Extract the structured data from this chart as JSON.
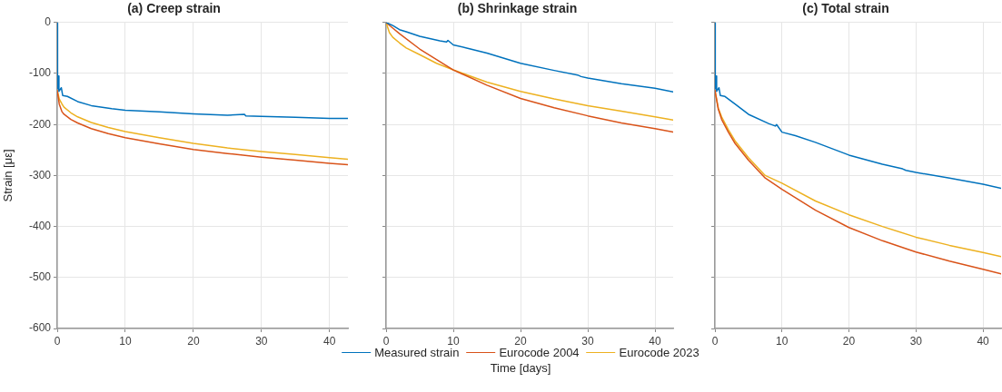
{
  "chart_data": [
    {
      "type": "line",
      "title": "(a) Creep strain",
      "ylabel": "Strain [με]",
      "xlim": [
        0,
        42.7
      ],
      "xticks": [
        0,
        10,
        20,
        30,
        40
      ],
      "ylim": [
        -600,
        0
      ],
      "yticks": [
        -600,
        -500,
        -400,
        -300,
        -200,
        -100,
        0
      ],
      "grid": true,
      "marker": "none",
      "series": [
        {
          "color": "#0072bd",
          "x": [
            0,
            0.05,
            0.15,
            0.25,
            0.6,
            0.8,
            1.5,
            3,
            5,
            8,
            10,
            15,
            20,
            25,
            27.5,
            27.7,
            30,
            35,
            40,
            42.7
          ],
          "values": [
            0,
            -130,
            -105,
            -135,
            -128,
            -143,
            -145,
            -155,
            -163,
            -169,
            -172,
            -175,
            -179,
            -182,
            -180,
            -183,
            -184,
            -186,
            -188,
            -188
          ]
        },
        {
          "color": "#d95319",
          "x": [
            0,
            0.3,
            0.7,
            1,
            2,
            3,
            5,
            7.5,
            10,
            15,
            20,
            25,
            30,
            35,
            40,
            42.7
          ],
          "values": [
            -133,
            -160,
            -175,
            -180,
            -190,
            -197,
            -208,
            -218,
            -226,
            -238,
            -249,
            -257,
            -264,
            -270,
            -276,
            -279
          ]
        },
        {
          "color": "#edb120",
          "x": [
            0,
            0.3,
            0.7,
            1,
            2,
            3,
            5,
            7.5,
            10,
            15,
            20,
            25,
            30,
            35,
            40,
            42.7
          ],
          "values": [
            -133,
            -150,
            -160,
            -166,
            -177,
            -185,
            -196,
            -206,
            -214,
            -226,
            -237,
            -246,
            -253,
            -259,
            -265,
            -268
          ]
        }
      ]
    },
    {
      "type": "line",
      "title": "(b) Shrinkage strain",
      "xlabel": "Time [days]",
      "xlim": [
        0,
        42.7
      ],
      "xticks": [
        0,
        10,
        20,
        30,
        40
      ],
      "ylim": [
        -600,
        0
      ],
      "yticks": [
        -600,
        -500,
        -400,
        -300,
        -200,
        -100,
        0
      ],
      "grid": true,
      "marker": "none",
      "legend": "bottom",
      "tick_labels": "x",
      "series": [
        {
          "name": "Measured strain",
          "color": "#0072bd",
          "x": [
            0,
            0.5,
            1,
            2,
            3,
            5,
            8,
            9,
            9.2,
            10,
            12,
            15,
            20,
            25,
            28.5,
            29,
            30,
            35,
            40,
            42.7
          ],
          "values": [
            0,
            -3,
            -6,
            -14,
            -18,
            -27,
            -36,
            -38,
            -35,
            -44,
            -50,
            -60,
            -80,
            -94,
            -103,
            -106,
            -109,
            -120,
            -129,
            -136
          ]
        },
        {
          "name": "Eurocode 2004",
          "color": "#d95319",
          "x": [
            0,
            1,
            2,
            5,
            10,
            15,
            20,
            25,
            30,
            35,
            40,
            42.7
          ],
          "values": [
            0,
            -11,
            -22,
            -52,
            -93,
            -123,
            -149,
            -167,
            -183,
            -197,
            -208,
            -215
          ]
        },
        {
          "name": "Eurocode 2023",
          "color": "#edb120",
          "x": [
            0,
            0.5,
            1,
            2,
            3,
            5,
            7.5,
            10,
            15,
            20,
            25,
            30,
            35,
            40,
            42.7
          ],
          "values": [
            0,
            -20,
            -29,
            -40,
            -50,
            -63,
            -80,
            -93,
            -117,
            -135,
            -150,
            -163,
            -174,
            -185,
            -191
          ]
        }
      ]
    },
    {
      "type": "line",
      "title": "(c) Total strain",
      "xlim": [
        0,
        42.7
      ],
      "xticks": [
        0,
        10,
        20,
        30,
        40
      ],
      "ylim": [
        -600,
        0
      ],
      "yticks": [
        -600,
        -500,
        -400,
        -300,
        -200,
        -100,
        0
      ],
      "grid": true,
      "marker": "none",
      "tick_labels": "x",
      "series": [
        {
          "color": "#0072bd",
          "x": [
            0,
            0.05,
            0.15,
            0.25,
            0.6,
            0.8,
            1.5,
            3,
            5,
            8,
            9,
            9.2,
            10,
            12,
            15,
            20,
            25,
            28,
            28.5,
            30,
            35,
            40,
            42.7
          ],
          "values": [
            0,
            -130,
            -105,
            -135,
            -128,
            -143,
            -145,
            -160,
            -180,
            -198,
            -203,
            -200,
            -215,
            -222,
            -235,
            -260,
            -278,
            -287,
            -290,
            -294,
            -305,
            -317,
            -325
          ]
        },
        {
          "color": "#d95319",
          "x": [
            0,
            0.5,
            1,
            2,
            3,
            5,
            7.5,
            10,
            15,
            20,
            25,
            30,
            35,
            40,
            42.7
          ],
          "values": [
            -133,
            -170,
            -190,
            -215,
            -237,
            -270,
            -305,
            -327,
            -368,
            -402,
            -428,
            -450,
            -468,
            -484,
            -493
          ]
        },
        {
          "color": "#edb120",
          "x": [
            0,
            0.5,
            1,
            2,
            3,
            5,
            7.5,
            10,
            15,
            20,
            25,
            30,
            35,
            40,
            42.7
          ],
          "values": [
            -133,
            -168,
            -185,
            -210,
            -232,
            -265,
            -300,
            -315,
            -350,
            -377,
            -400,
            -421,
            -437,
            -451,
            -459
          ]
        }
      ]
    }
  ]
}
